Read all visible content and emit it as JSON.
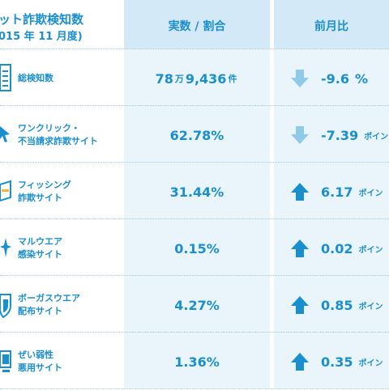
{
  "header": {
    "title": "ット詐欺検知数",
    "subtitle": "015 年 11 月度)",
    "col_value": "実数 / 割合",
    "col_change": "前月比"
  },
  "colors": {
    "text": "#1a8fd0",
    "down_arrow": "#8fcbe8",
    "up_arrow": "#1a8fd0",
    "shade": "#e9f4fb"
  },
  "rows": [
    {
      "label_lines": [
        "総検知数"
      ],
      "icon": "document-list-icon",
      "value_parts": [
        "78",
        "万",
        "9,436",
        "件"
      ],
      "direction": "down",
      "change_value": "-9.6",
      "change_unit": "%"
    },
    {
      "label_lines": [
        "ワンクリック・",
        "不当請求詐欺サイト"
      ],
      "icon": "cursor-click-icon",
      "value_parts": [
        "62.78%"
      ],
      "direction": "down",
      "change_value": "-7.39",
      "change_unit": "ポイン"
    },
    {
      "label_lines": [
        "フィッシング",
        "詐欺サイト"
      ],
      "icon": "phishing-card-icon",
      "value_parts": [
        "31.44%"
      ],
      "direction": "up",
      "change_value": "6.17",
      "change_unit": "ポイン"
    },
    {
      "label_lines": [
        "マルウエア",
        "感染サイト"
      ],
      "icon": "malware-star-icon",
      "value_parts": [
        "0.15%"
      ],
      "direction": "up",
      "change_value": "0.02",
      "change_unit": "ポイン"
    },
    {
      "label_lines": [
        "ボーガスウエア",
        "配布サイト"
      ],
      "icon": "shield-icon",
      "value_parts": [
        "4.27%"
      ],
      "direction": "up",
      "change_value": "0.85",
      "change_unit": "ポイン"
    },
    {
      "label_lines": [
        "ぜい弱性",
        "悪用サイト"
      ],
      "icon": "monitor-icon",
      "value_parts": [
        "1.36%"
      ],
      "direction": "up",
      "change_value": "0.35",
      "change_unit": "ポイン"
    }
  ]
}
